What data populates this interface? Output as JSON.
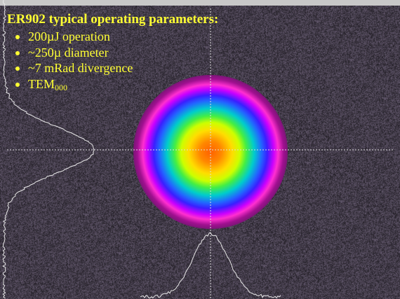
{
  "slide": {
    "title": "ER902 typical operating parameters:",
    "bullets": [
      "200µJ operation",
      "~250µ diameter",
      "~7 mRad divergence"
    ],
    "tem_base": "TEM",
    "tem_sub": "000"
  },
  "colors": {
    "text": "#ffff33",
    "crosshair": "#dddddd",
    "profile_curve": "#e8e8e8",
    "background": "#33303a"
  }
}
